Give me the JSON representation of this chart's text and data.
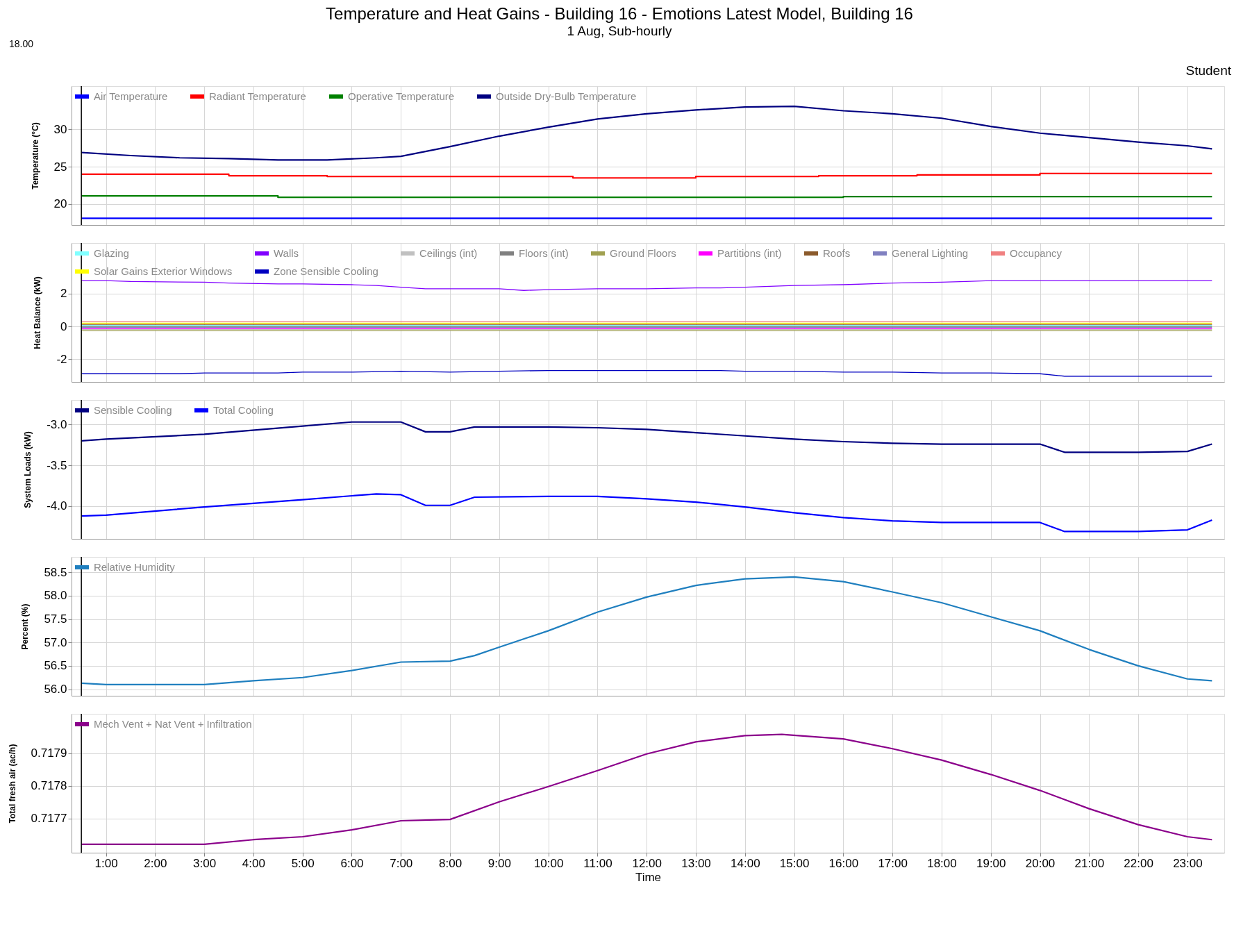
{
  "chart_data": [
    {
      "type": "line",
      "title": "Temperature and Heat Gains - Building 16 - Emotions Latest Model, Building 16",
      "subtitle": "1 Aug, Sub-hourly",
      "annotations": [
        "18.00",
        "Student"
      ],
      "ylabel": "Temperature (°C)",
      "xlim": [
        0.3,
        23.75
      ],
      "ylim": [
        17.2,
        35.8
      ],
      "yticks": [
        20,
        25,
        30
      ],
      "xticks": [
        {
          "value": 1,
          "label": null
        },
        {
          "value": 2,
          "label": null
        },
        {
          "value": 3,
          "label": null
        },
        {
          "value": 4,
          "label": null
        },
        {
          "value": 5,
          "label": null
        },
        {
          "value": 6,
          "label": null
        },
        {
          "value": 7,
          "label": null
        },
        {
          "value": 8,
          "label": null
        },
        {
          "value": 9,
          "label": null
        },
        {
          "value": 10,
          "label": null
        },
        {
          "value": 11,
          "label": null
        },
        {
          "value": 12,
          "label": null
        },
        {
          "value": 13,
          "label": null
        },
        {
          "value": 14,
          "label": null
        },
        {
          "value": 15,
          "label": null
        },
        {
          "value": 16,
          "label": null
        },
        {
          "value": 17,
          "label": null
        },
        {
          "value": 18,
          "label": null
        },
        {
          "value": 19,
          "label": null
        },
        {
          "value": 20,
          "label": null
        },
        {
          "value": 21,
          "label": null
        },
        {
          "value": 22,
          "label": null
        },
        {
          "value": 23,
          "label": null
        }
      ],
      "tick_labels": "y",
      "grid": true,
      "legend": "top left",
      "ref_lines": [
        {
          "axis": "x",
          "value": 0.5,
          "color": "#000000"
        }
      ],
      "series": [
        {
          "name": "Air Temperature",
          "color": "#0000ff",
          "x": [
            0.5,
            23.5
          ],
          "values": [
            18.1,
            18.1
          ]
        },
        {
          "name": "Radiant Temperature",
          "color": "#ff0000",
          "x": [
            0.5,
            3.5,
            3.5,
            5.5,
            5.5,
            10.5,
            10.5,
            13,
            13,
            15.5,
            15.5,
            17.5,
            17.5,
            20,
            20,
            23.5
          ],
          "values": [
            24.0,
            24.0,
            23.8,
            23.8,
            23.7,
            23.7,
            23.5,
            23.5,
            23.7,
            23.7,
            23.8,
            23.8,
            23.9,
            23.9,
            24.1,
            24.1
          ]
        },
        {
          "name": "Operative Temperature",
          "color": "#008000",
          "x": [
            0.5,
            4.5,
            4.5,
            16,
            16,
            23.5
          ],
          "values": [
            21.1,
            21.1,
            20.9,
            20.9,
            21.0,
            21.0
          ]
        },
        {
          "name": "Outside Dry-Bulb Temperature",
          "color": "#000080",
          "x": [
            0.5,
            1.5,
            2.5,
            3.5,
            4.5,
            5.5,
            6.5,
            7,
            8,
            9,
            10,
            11,
            12,
            13,
            14,
            15,
            16,
            17,
            18,
            19,
            20,
            21,
            22,
            23,
            23.5
          ],
          "values": [
            26.9,
            26.5,
            26.2,
            26.1,
            25.9,
            25.9,
            26.2,
            26.4,
            27.7,
            29.1,
            30.3,
            31.4,
            32.1,
            32.6,
            33.0,
            33.1,
            32.5,
            32.1,
            31.5,
            30.4,
            29.5,
            28.9,
            28.3,
            27.8,
            27.4
          ]
        }
      ]
    },
    {
      "type": "line",
      "ylabel": "Heat Balance (kW)",
      "xlim": [
        0.3,
        23.75
      ],
      "ylim": [
        -3.4,
        5.1
      ],
      "yticks": [
        -2,
        0,
        2
      ],
      "xticks": [
        {
          "value": 1,
          "label": null
        },
        {
          "value": 2,
          "label": null
        },
        {
          "value": 3,
          "label": null
        },
        {
          "value": 4,
          "label": null
        },
        {
          "value": 5,
          "label": null
        },
        {
          "value": 6,
          "label": null
        },
        {
          "value": 7,
          "label": null
        },
        {
          "value": 8,
          "label": null
        },
        {
          "value": 9,
          "label": null
        },
        {
          "value": 10,
          "label": null
        },
        {
          "value": 11,
          "label": null
        },
        {
          "value": 12,
          "label": null
        },
        {
          "value": 13,
          "label": null
        },
        {
          "value": 14,
          "label": null
        },
        {
          "value": 15,
          "label": null
        },
        {
          "value": 16,
          "label": null
        },
        {
          "value": 17,
          "label": null
        },
        {
          "value": 18,
          "label": null
        },
        {
          "value": 19,
          "label": null
        },
        {
          "value": 20,
          "label": null
        },
        {
          "value": 21,
          "label": null
        },
        {
          "value": 22,
          "label": null
        },
        {
          "value": 23,
          "label": null
        }
      ],
      "tick_labels": "y",
      "grid": true,
      "legend": "top left",
      "ref_lines": [
        {
          "axis": "x",
          "value": 0.5,
          "color": "#000000"
        }
      ],
      "series": [
        {
          "name": "Glazing",
          "color": "#80ffff",
          "x": [
            0.5,
            23.5
          ],
          "values": [
            0.06,
            0.06
          ]
        },
        {
          "name": "Walls",
          "color": "#8000ff",
          "x": [
            0.5,
            1,
            1.5,
            3,
            3.5,
            4.5,
            5,
            6,
            6.5,
            7,
            7.5,
            8,
            9,
            9.5,
            10,
            11,
            12,
            13,
            13.5,
            14,
            15,
            16,
            17,
            18,
            18.5,
            19,
            20,
            21,
            22,
            23,
            23.5
          ],
          "values": [
            2.8,
            2.8,
            2.75,
            2.7,
            2.65,
            2.6,
            2.6,
            2.55,
            2.5,
            2.4,
            2.3,
            2.3,
            2.3,
            2.2,
            2.25,
            2.3,
            2.3,
            2.35,
            2.35,
            2.4,
            2.5,
            2.55,
            2.65,
            2.7,
            2.75,
            2.8,
            2.8,
            2.8,
            2.8,
            2.8,
            2.8
          ]
        },
        {
          "name": "Ceilings (int)",
          "color": "#c0c0c0",
          "x": [
            0.5,
            23.5
          ],
          "values": [
            -0.2,
            -0.2
          ]
        },
        {
          "name": "Floors (int)",
          "color": "#808080",
          "x": [
            0.5,
            23.5
          ],
          "values": [
            0.0,
            0.0
          ]
        },
        {
          "name": "Ground Floors",
          "color": "#a0a050",
          "x": [
            0.5,
            23.5
          ],
          "values": [
            -0.27,
            -0.27
          ]
        },
        {
          "name": "Partitions (int)",
          "color": "#ff00ff",
          "x": [
            0.5,
            23.5
          ],
          "values": [
            -0.14,
            -0.14
          ]
        },
        {
          "name": "Roofs",
          "color": "#8b5a2b",
          "x": [
            0.5,
            23.5
          ],
          "values": [
            0.12,
            0.12
          ]
        },
        {
          "name": "General Lighting",
          "color": "#8080c0",
          "x": [
            0.5,
            23.5
          ],
          "values": [
            -0.07,
            -0.07
          ]
        },
        {
          "name": "Occupancy",
          "color": "#f08080",
          "x": [
            0.5,
            23.5
          ],
          "values": [
            0.28,
            0.28
          ]
        },
        {
          "name": "Solar Gains Exterior Windows",
          "color": "#ffff00",
          "x": [
            0.5,
            23.5
          ],
          "values": [
            0.2,
            0.2
          ]
        },
        {
          "name": "Zone Sensible Cooling",
          "color": "#0000c0",
          "x": [
            0.5,
            2.5,
            3,
            4.5,
            5,
            6,
            7,
            8,
            9,
            10,
            11,
            12,
            13,
            13.5,
            14,
            15,
            16,
            17,
            18,
            19,
            20,
            20.5,
            23.5
          ],
          "values": [
            -2.9,
            -2.9,
            -2.85,
            -2.85,
            -2.8,
            -2.8,
            -2.75,
            -2.8,
            -2.75,
            -2.7,
            -2.7,
            -2.7,
            -2.7,
            -2.7,
            -2.75,
            -2.75,
            -2.8,
            -2.8,
            -2.85,
            -2.85,
            -2.9,
            -3.05,
            -3.05
          ]
        }
      ]
    },
    {
      "type": "line",
      "ylabel": "System Loads (kW)",
      "xlim": [
        0.3,
        23.75
      ],
      "ylim": [
        -4.4,
        -2.7
      ],
      "yticks": [
        {
          "value": -4,
          "label": "-4.0"
        },
        {
          "value": -3.5,
          "label": "-3.5"
        },
        {
          "value": -3,
          "label": "-3.0"
        }
      ],
      "xticks": [
        {
          "value": 1,
          "label": null
        },
        {
          "value": 2,
          "label": null
        },
        {
          "value": 3,
          "label": null
        },
        {
          "value": 4,
          "label": null
        },
        {
          "value": 5,
          "label": null
        },
        {
          "value": 6,
          "label": null
        },
        {
          "value": 7,
          "label": null
        },
        {
          "value": 8,
          "label": null
        },
        {
          "value": 9,
          "label": null
        },
        {
          "value": 10,
          "label": null
        },
        {
          "value": 11,
          "label": null
        },
        {
          "value": 12,
          "label": null
        },
        {
          "value": 13,
          "label": null
        },
        {
          "value": 14,
          "label": null
        },
        {
          "value": 15,
          "label": null
        },
        {
          "value": 16,
          "label": null
        },
        {
          "value": 17,
          "label": null
        },
        {
          "value": 18,
          "label": null
        },
        {
          "value": 19,
          "label": null
        },
        {
          "value": 20,
          "label": null
        },
        {
          "value": 21,
          "label": null
        },
        {
          "value": 22,
          "label": null
        },
        {
          "value": 23,
          "label": null
        }
      ],
      "tick_labels": "y",
      "grid": true,
      "legend": "top left",
      "ref_lines": [
        {
          "axis": "x",
          "value": 0.5,
          "color": "#000000"
        }
      ],
      "series": [
        {
          "name": "Sensible Cooling",
          "color": "#000080",
          "x": [
            0.5,
            1,
            3,
            5,
            6,
            7,
            7.5,
            8,
            8.5,
            10,
            11,
            12,
            13,
            14,
            15,
            16,
            17,
            18,
            20,
            20.5,
            22,
            23,
            23.5
          ],
          "values": [
            -3.2,
            -3.18,
            -3.12,
            -3.02,
            -2.97,
            -2.97,
            -3.09,
            -3.09,
            -3.03,
            -3.03,
            -3.04,
            -3.06,
            -3.1,
            -3.14,
            -3.18,
            -3.21,
            -3.23,
            -3.24,
            -3.24,
            -3.34,
            -3.34,
            -3.33,
            -3.24
          ]
        },
        {
          "name": "Total Cooling",
          "color": "#0000ff",
          "x": [
            0.5,
            1,
            3,
            5,
            6.5,
            7,
            7.5,
            8,
            8.5,
            10,
            11,
            12,
            13,
            14,
            15,
            16,
            17,
            18,
            19,
            20,
            20.5,
            22,
            23,
            23.5
          ],
          "values": [
            -4.12,
            -4.11,
            -4.01,
            -3.92,
            -3.85,
            -3.86,
            -3.99,
            -3.99,
            -3.89,
            -3.88,
            -3.88,
            -3.91,
            -3.95,
            -4.01,
            -4.08,
            -4.14,
            -4.18,
            -4.2,
            -4.2,
            -4.2,
            -4.31,
            -4.31,
            -4.29,
            -4.17
          ]
        }
      ]
    },
    {
      "type": "line",
      "ylabel": "Percent (%)",
      "xlim": [
        0.3,
        23.75
      ],
      "ylim": [
        55.86,
        58.83
      ],
      "yticks": [
        {
          "value": 56,
          "label": "56.0"
        },
        56.5,
        {
          "value": 57,
          "label": "57.0"
        },
        57.5,
        {
          "value": 58,
          "label": "58.0"
        },
        58.5
      ],
      "xticks": [
        {
          "value": 1,
          "label": null
        },
        {
          "value": 2,
          "label": null
        },
        {
          "value": 3,
          "label": null
        },
        {
          "value": 4,
          "label": null
        },
        {
          "value": 5,
          "label": null
        },
        {
          "value": 6,
          "label": null
        },
        {
          "value": 7,
          "label": null
        },
        {
          "value": 8,
          "label": null
        },
        {
          "value": 9,
          "label": null
        },
        {
          "value": 10,
          "label": null
        },
        {
          "value": 11,
          "label": null
        },
        {
          "value": 12,
          "label": null
        },
        {
          "value": 13,
          "label": null
        },
        {
          "value": 14,
          "label": null
        },
        {
          "value": 15,
          "label": null
        },
        {
          "value": 16,
          "label": null
        },
        {
          "value": 17,
          "label": null
        },
        {
          "value": 18,
          "label": null
        },
        {
          "value": 19,
          "label": null
        },
        {
          "value": 20,
          "label": null
        },
        {
          "value": 21,
          "label": null
        },
        {
          "value": 22,
          "label": null
        },
        {
          "value": 23,
          "label": null
        }
      ],
      "tick_labels": "y",
      "grid": true,
      "legend": "top left",
      "ref_lines": [
        {
          "axis": "x",
          "value": 0.5,
          "color": "#000000"
        }
      ],
      "series": [
        {
          "name": "Relative Humidity",
          "color": "#1f7fbf",
          "x": [
            0.5,
            1,
            3,
            4,
            5,
            6,
            7,
            8,
            8.5,
            9,
            10,
            11,
            12,
            13,
            14,
            15,
            16,
            17,
            18,
            19,
            20,
            21,
            22,
            23,
            23.5
          ],
          "values": [
            56.13,
            56.1,
            56.1,
            56.18,
            56.25,
            56.4,
            56.58,
            56.6,
            56.72,
            56.9,
            57.25,
            57.65,
            57.97,
            58.22,
            58.36,
            58.4,
            58.3,
            58.08,
            57.85,
            57.55,
            57.25,
            56.85,
            56.5,
            56.22,
            56.18
          ]
        }
      ]
    },
    {
      "type": "line",
      "ylabel": "Total fresh air (ac/h)",
      "xlabel": "Time",
      "xlim": [
        0.3,
        23.75
      ],
      "ylim": [
        0.717595,
        0.718021
      ],
      "yticks": [
        0.7177,
        0.7178,
        0.7179
      ],
      "xticks": [
        {
          "value": 1,
          "label": "1:00"
        },
        {
          "value": 2,
          "label": "2:00"
        },
        {
          "value": 3,
          "label": "3:00"
        },
        {
          "value": 4,
          "label": "4:00"
        },
        {
          "value": 5,
          "label": "5:00"
        },
        {
          "value": 6,
          "label": "6:00"
        },
        {
          "value": 7,
          "label": "7:00"
        },
        {
          "value": 8,
          "label": "8:00"
        },
        {
          "value": 9,
          "label": "9:00"
        },
        {
          "value": 10,
          "label": "10:00"
        },
        {
          "value": 11,
          "label": "11:00"
        },
        {
          "value": 12,
          "label": "12:00"
        },
        {
          "value": 13,
          "label": "13:00"
        },
        {
          "value": 14,
          "label": "14:00"
        },
        {
          "value": 15,
          "label": "15:00"
        },
        {
          "value": 16,
          "label": "16:00"
        },
        {
          "value": 17,
          "label": "17:00"
        },
        {
          "value": 18,
          "label": "18:00"
        },
        {
          "value": 19,
          "label": "19:00"
        },
        {
          "value": 20,
          "label": "20:00"
        },
        {
          "value": 21,
          "label": "21:00"
        },
        {
          "value": 22,
          "label": "22:00"
        },
        {
          "value": 23,
          "label": "23:00"
        }
      ],
      "grid": true,
      "legend": "top left",
      "ref_lines": [
        {
          "axis": "x",
          "value": 0.5,
          "color": "#000000"
        }
      ],
      "series": [
        {
          "name": "Mech Vent + Nat Vent + Infiltration",
          "color": "#8b008b",
          "x": [
            0.5,
            3,
            4,
            5,
            6,
            7,
            8,
            9,
            10,
            11,
            12,
            13,
            14,
            14.75,
            16,
            17,
            18,
            19,
            20,
            21,
            22,
            23,
            23.5
          ],
          "values": [
            0.717621,
            0.717621,
            0.717635,
            0.717644,
            0.717665,
            0.717693,
            0.717697,
            0.717751,
            0.717798,
            0.717847,
            0.717898,
            0.717935,
            0.717954,
            0.717958,
            0.717944,
            0.717914,
            0.717879,
            0.717835,
            0.717786,
            0.71773,
            0.717681,
            0.717644,
            0.717635
          ]
        }
      ]
    }
  ]
}
